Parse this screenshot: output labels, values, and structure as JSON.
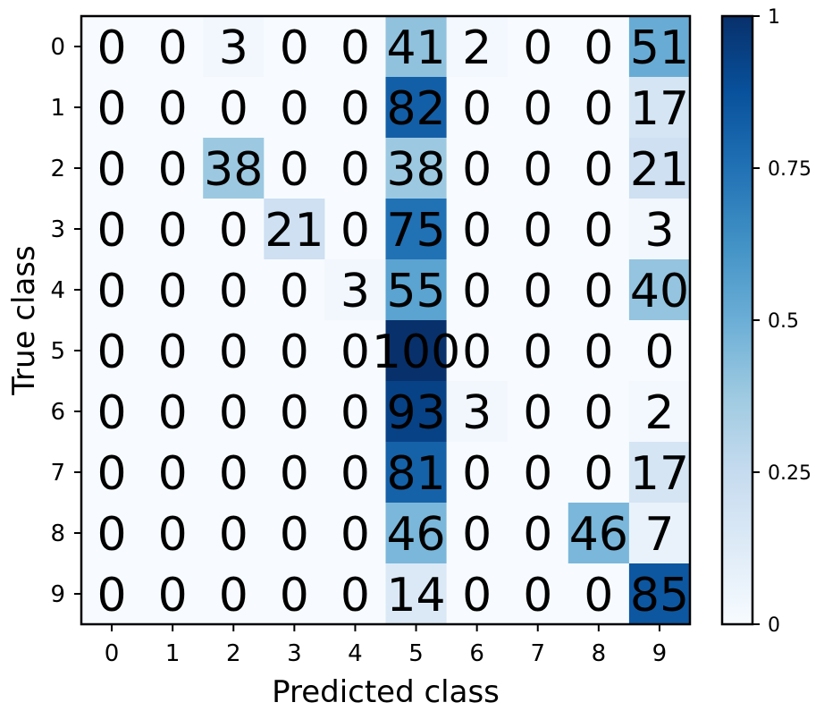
{
  "chart_data": {
    "type": "heatmap",
    "title": "",
    "xlabel": "Predicted class",
    "ylabel": "True class",
    "x_categories": [
      "0",
      "1",
      "2",
      "3",
      "4",
      "5",
      "6",
      "7",
      "8",
      "9"
    ],
    "y_categories": [
      "0",
      "1",
      "2",
      "3",
      "4",
      "5",
      "6",
      "7",
      "8",
      "9"
    ],
    "values": [
      [
        0,
        0,
        3,
        0,
        0,
        41,
        2,
        0,
        0,
        51
      ],
      [
        0,
        0,
        0,
        0,
        0,
        82,
        0,
        0,
        0,
        17
      ],
      [
        0,
        0,
        38,
        0,
        0,
        38,
        0,
        0,
        0,
        21
      ],
      [
        0,
        0,
        0,
        21,
        0,
        75,
        0,
        0,
        0,
        3
      ],
      [
        0,
        0,
        0,
        0,
        3,
        55,
        0,
        0,
        0,
        40
      ],
      [
        0,
        0,
        0,
        0,
        0,
        100,
        0,
        0,
        0,
        0
      ],
      [
        0,
        0,
        0,
        0,
        0,
        93,
        3,
        0,
        0,
        2
      ],
      [
        0,
        0,
        0,
        0,
        0,
        81,
        0,
        0,
        0,
        17
      ],
      [
        0,
        0,
        0,
        0,
        0,
        46,
        0,
        0,
        46,
        7
      ],
      [
        0,
        0,
        0,
        0,
        0,
        14,
        0,
        0,
        0,
        85
      ]
    ],
    "colormap": "Blues",
    "colorbar": {
      "range": [
        0,
        1
      ],
      "ticks": [
        0,
        0.25,
        0.5,
        0.75,
        1
      ],
      "tick_labels": [
        "0",
        "0.25",
        "0.5",
        "0.75",
        "1"
      ]
    }
  }
}
